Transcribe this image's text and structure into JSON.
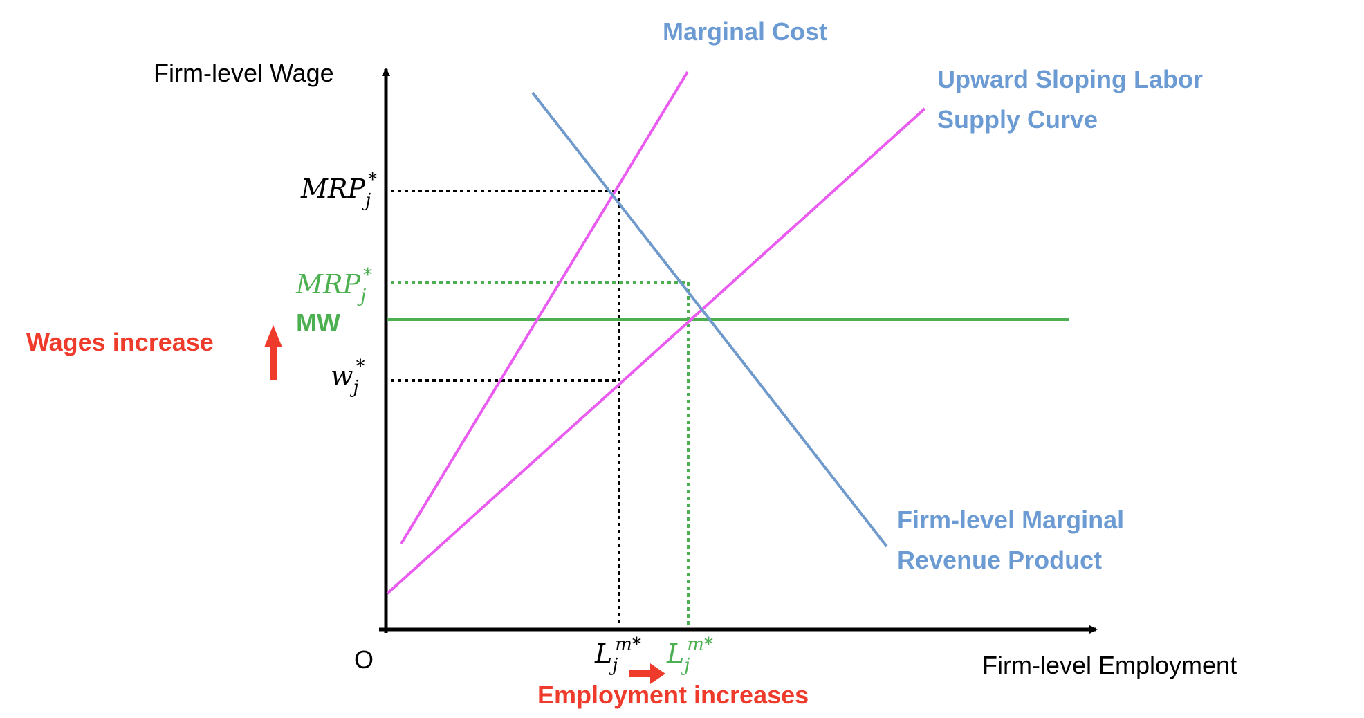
{
  "axes": {
    "y_label": "Firm-level Wage",
    "x_label": "Firm-level Employment",
    "origin": "O"
  },
  "curves": {
    "marginal_cost": {
      "label": "Marginal Cost"
    },
    "labor_supply": {
      "label_line1": "Upward Sloping Labor",
      "label_line2": "Supply Curve"
    },
    "mrp": {
      "label_line1": "Firm-level Marginal",
      "label_line2": "Revenue Product"
    }
  },
  "y_ticks": {
    "mrp_star": {
      "base": "MRP",
      "sub": "j",
      "sup": "*"
    },
    "mrp_star_mw": {
      "base": "MRP",
      "sub": "j",
      "sup": "*"
    },
    "mw": "MW",
    "w_star": {
      "base": "w",
      "sub": "j",
      "sup": "*"
    }
  },
  "x_ticks": {
    "l_m_star": {
      "base": "L",
      "sub": "j",
      "sup": "m*"
    },
    "l_m_star_mw": {
      "base": "L",
      "sub": "j",
      "sup": "m*"
    }
  },
  "annotations": {
    "wages_increase": "Wages increase",
    "employment_increases": "Employment increases"
  },
  "colors": {
    "blue_label": "#6b9bd2",
    "blue_line": "#6f9acb",
    "magenta": "#ea5cf0",
    "green": "#4caf50",
    "red": "#ee3b2b",
    "black": "#000000"
  }
}
